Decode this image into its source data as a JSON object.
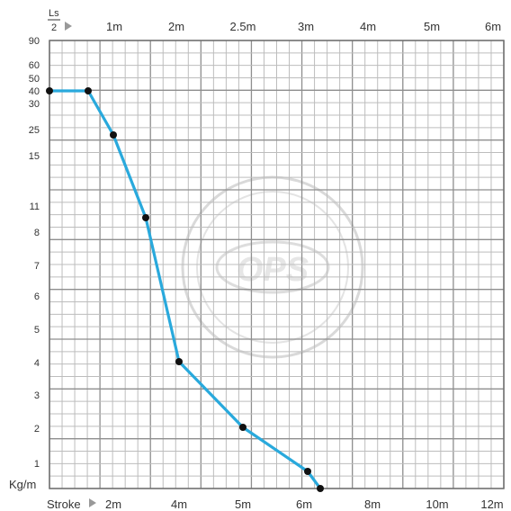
{
  "chart_data": {
    "type": "line",
    "top_axis_label_top": "Ls",
    "top_axis_label_bottom": "2",
    "top_ticks": [
      "1m",
      "2m",
      "2.5m",
      "3m",
      "4m",
      "5m",
      "6m"
    ],
    "bottom_axis_label": "Stroke",
    "bottom_ticks": [
      "2m",
      "4m",
      "5m",
      "6m",
      "8m",
      "10m",
      "12m"
    ],
    "y_axis_label": "Kg/m",
    "y_ticks": [
      "90",
      "60",
      "50",
      "40",
      "30",
      "25",
      "15",
      "11",
      "8",
      "7",
      "6",
      "5",
      "4",
      "3",
      "2",
      "1"
    ],
    "series": [
      {
        "color": "#29a9dc",
        "points": [
          {
            "x": "0",
            "y": "40"
          },
          {
            "x": "1.2",
            "y": "40"
          },
          {
            "x": "2",
            "y": "23"
          },
          {
            "x": "3",
            "y": "9.5"
          },
          {
            "x": "4",
            "y": "4"
          },
          {
            "x": "5",
            "y": "2"
          },
          {
            "x": "6",
            "y": "0.8"
          },
          {
            "x": "6.2",
            "y": "0.3"
          }
        ]
      }
    ],
    "watermark": "OPS"
  }
}
